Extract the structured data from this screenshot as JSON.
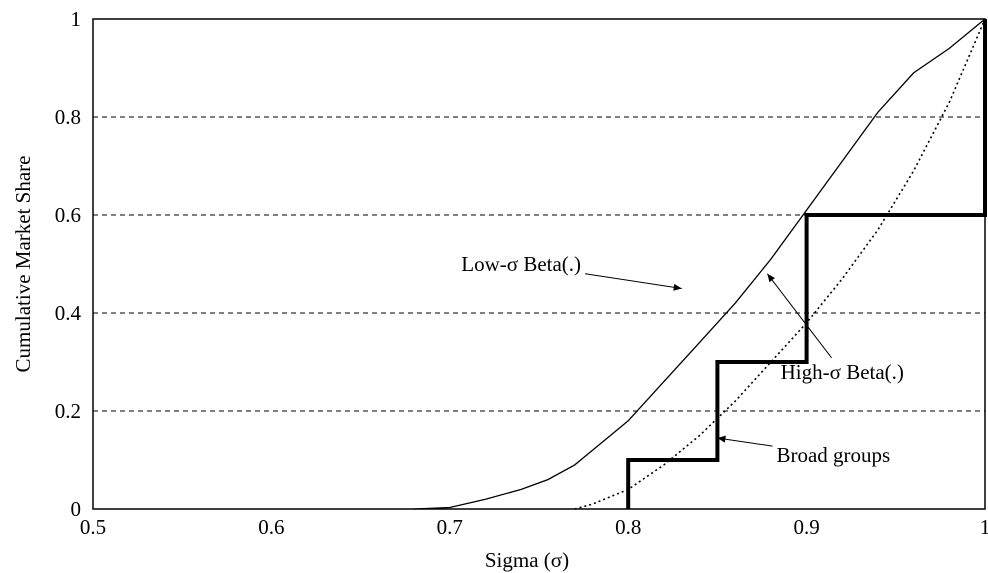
{
  "chart_data": {
    "type": "line",
    "xlabel": "Sigma (σ)",
    "ylabel": "Cumulative Market Share",
    "xlim": [
      0.5,
      1.0
    ],
    "ylim": [
      0,
      1
    ],
    "x_ticks": [
      "0.5",
      "0.6",
      "0.7",
      "0.8",
      "0.9",
      "1"
    ],
    "y_ticks": [
      "0",
      "0.2",
      "0.4",
      "0.6",
      "0.8",
      "1"
    ],
    "grid": "horizontal dashed",
    "series": [
      {
        "name": "Low-σ Beta(.)",
        "style": "thin solid",
        "x": [
          0.68,
          0.7,
          0.72,
          0.74,
          0.755,
          0.77,
          0.78,
          0.79,
          0.8,
          0.82,
          0.84,
          0.86,
          0.88,
          0.9,
          0.92,
          0.94,
          0.96,
          0.98,
          1.0
        ],
        "y": [
          0.0,
          0.003,
          0.02,
          0.04,
          0.06,
          0.09,
          0.12,
          0.15,
          0.18,
          0.26,
          0.34,
          0.42,
          0.51,
          0.61,
          0.71,
          0.81,
          0.89,
          0.94,
          1.0
        ]
      },
      {
        "name": "High-σ Beta(.)",
        "style": "dotted",
        "x": [
          0.77,
          0.78,
          0.8,
          0.82,
          0.84,
          0.86,
          0.88,
          0.9,
          0.92,
          0.94,
          0.96,
          0.98,
          1.0
        ],
        "y": [
          0.0,
          0.01,
          0.04,
          0.09,
          0.15,
          0.22,
          0.3,
          0.38,
          0.47,
          0.57,
          0.69,
          0.83,
          1.0
        ]
      },
      {
        "name": "Broad groups",
        "style": "thick step",
        "x": [
          0.8,
          0.8,
          0.85,
          0.85,
          0.9,
          0.9,
          1.0,
          1.0
        ],
        "y": [
          0.0,
          0.1,
          0.1,
          0.3,
          0.3,
          0.6,
          0.6,
          1.0
        ]
      }
    ],
    "annotations": [
      {
        "text": "Low-σ Beta(.)",
        "x": 0.74,
        "y": 0.5,
        "arrow_to": [
          0.83,
          0.45
        ]
      },
      {
        "text": "High-σ Beta(.)",
        "x": 0.92,
        "y": 0.28,
        "arrow_to": [
          0.878,
          0.48
        ]
      },
      {
        "text": "Broad groups",
        "x": 0.915,
        "y": 0.11,
        "arrow_to": [
          0.85,
          0.145
        ]
      }
    ]
  }
}
